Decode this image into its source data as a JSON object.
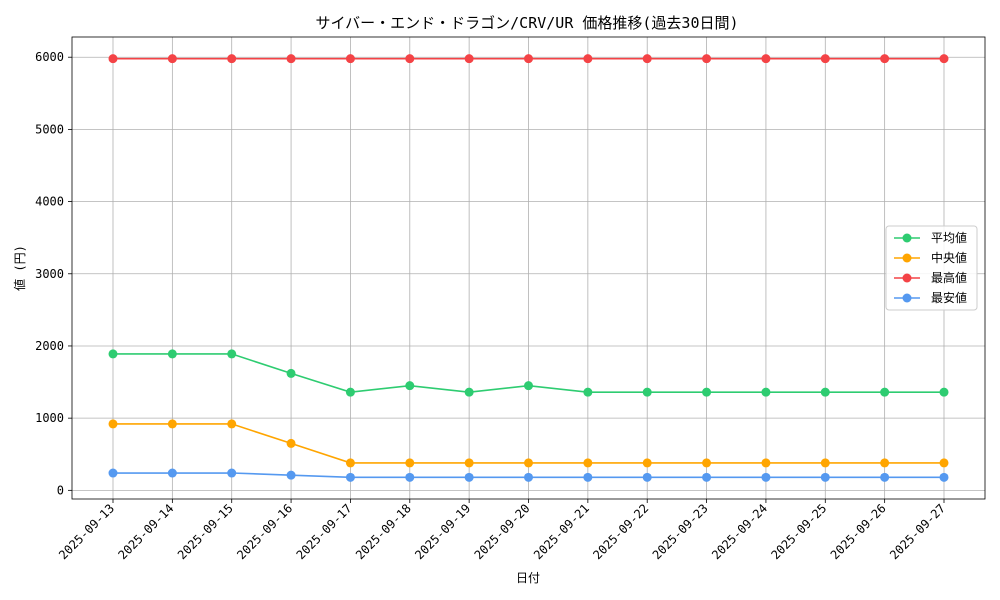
{
  "chart_data": {
    "type": "line",
    "title": "サイバー・エンド・ドラゴン/CRV/UR 価格推移(過去30日間)",
    "xlabel": "日付",
    "ylabel": "値 (円)",
    "ylim": [
      -120,
      6280
    ],
    "yticks": [
      0,
      1000,
      2000,
      3000,
      4000,
      5000,
      6000
    ],
    "grid": true,
    "legend_position": "center-right",
    "categories": [
      "2025-09-13",
      "2025-09-14",
      "2025-09-15",
      "2025-09-16",
      "2025-09-17",
      "2025-09-18",
      "2025-09-19",
      "2025-09-20",
      "2025-09-21",
      "2025-09-22",
      "2025-09-23",
      "2025-09-24",
      "2025-09-25",
      "2025-09-26",
      "2025-09-27"
    ],
    "series": [
      {
        "name": "平均値",
        "color": "#2ecc71",
        "values": [
          1890,
          1890,
          1890,
          1620,
          1360,
          1450,
          1360,
          1450,
          1360,
          1360,
          1360,
          1360,
          1360,
          1360,
          1360
        ]
      },
      {
        "name": "中央値",
        "color": "#ffa500",
        "values": [
          920,
          920,
          920,
          650,
          380,
          380,
          380,
          380,
          380,
          380,
          380,
          380,
          380,
          380,
          380
        ]
      },
      {
        "name": "最高値",
        "color": "#f44346",
        "values": [
          5980,
          5980,
          5980,
          5980,
          5980,
          5980,
          5980,
          5980,
          5980,
          5980,
          5980,
          5980,
          5980,
          5980,
          5980
        ]
      },
      {
        "name": "最安値",
        "color": "#5599f0",
        "values": [
          240,
          240,
          240,
          210,
          180,
          180,
          180,
          180,
          180,
          180,
          180,
          180,
          180,
          180,
          180
        ]
      }
    ]
  }
}
